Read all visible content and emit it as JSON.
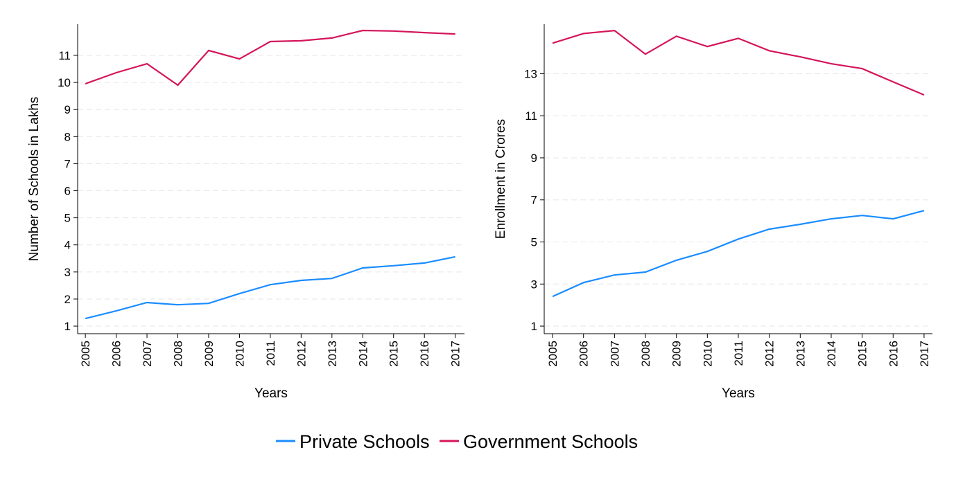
{
  "legend": {
    "private": "Private Schools",
    "government": "Government Schools"
  },
  "chart_data": [
    {
      "type": "line",
      "xlabel": "Years",
      "ylabel": "Number of Schools in Lakhs",
      "x": [
        2005,
        2006,
        2007,
        2008,
        2009,
        2010,
        2011,
        2012,
        2013,
        2014,
        2015,
        2016,
        2017
      ],
      "xlim": [
        2004.75,
        2017.3
      ],
      "ylim": [
        0.72,
        12.15
      ],
      "yticks": [
        1,
        2,
        3,
        4,
        5,
        6,
        7,
        8,
        9,
        10,
        11
      ],
      "grid": true,
      "legend_position": "bottom",
      "series": [
        {
          "name": "Private Schools",
          "color": "#1a8cff",
          "values": [
            1.28,
            1.56,
            1.87,
            1.79,
            1.84,
            2.2,
            2.53,
            2.69,
            2.76,
            3.15,
            3.23,
            3.33,
            3.56
          ]
        },
        {
          "name": "Government Schools",
          "color": "#d5145a",
          "values": [
            9.95,
            10.36,
            10.69,
            9.9,
            11.18,
            10.87,
            11.51,
            11.54,
            11.64,
            11.92,
            11.9,
            11.84,
            11.79
          ]
        }
      ]
    },
    {
      "type": "line",
      "xlabel": "Years",
      "ylabel": "Enrollment in Crores",
      "x": [
        2005,
        2006,
        2007,
        2008,
        2009,
        2010,
        2011,
        2012,
        2013,
        2014,
        2015,
        2016,
        2017
      ],
      "xlim": [
        2004.73,
        2017.27
      ],
      "ylim": [
        0.64,
        15.35
      ],
      "yticks": [
        1,
        3,
        5,
        7,
        9,
        11,
        13
      ],
      "grid": true,
      "legend_position": "bottom",
      "series": [
        {
          "name": "Private Schools",
          "color": "#1a8cff",
          "values": [
            2.41,
            3.07,
            3.43,
            3.57,
            4.13,
            4.55,
            5.14,
            5.61,
            5.84,
            6.1,
            6.26,
            6.1,
            6.49
          ]
        },
        {
          "name": "Government Schools",
          "color": "#d5145a",
          "values": [
            14.45,
            14.91,
            15.05,
            13.93,
            14.78,
            14.29,
            14.68,
            14.09,
            13.8,
            13.47,
            13.24,
            12.61,
            11.99
          ]
        }
      ]
    }
  ]
}
